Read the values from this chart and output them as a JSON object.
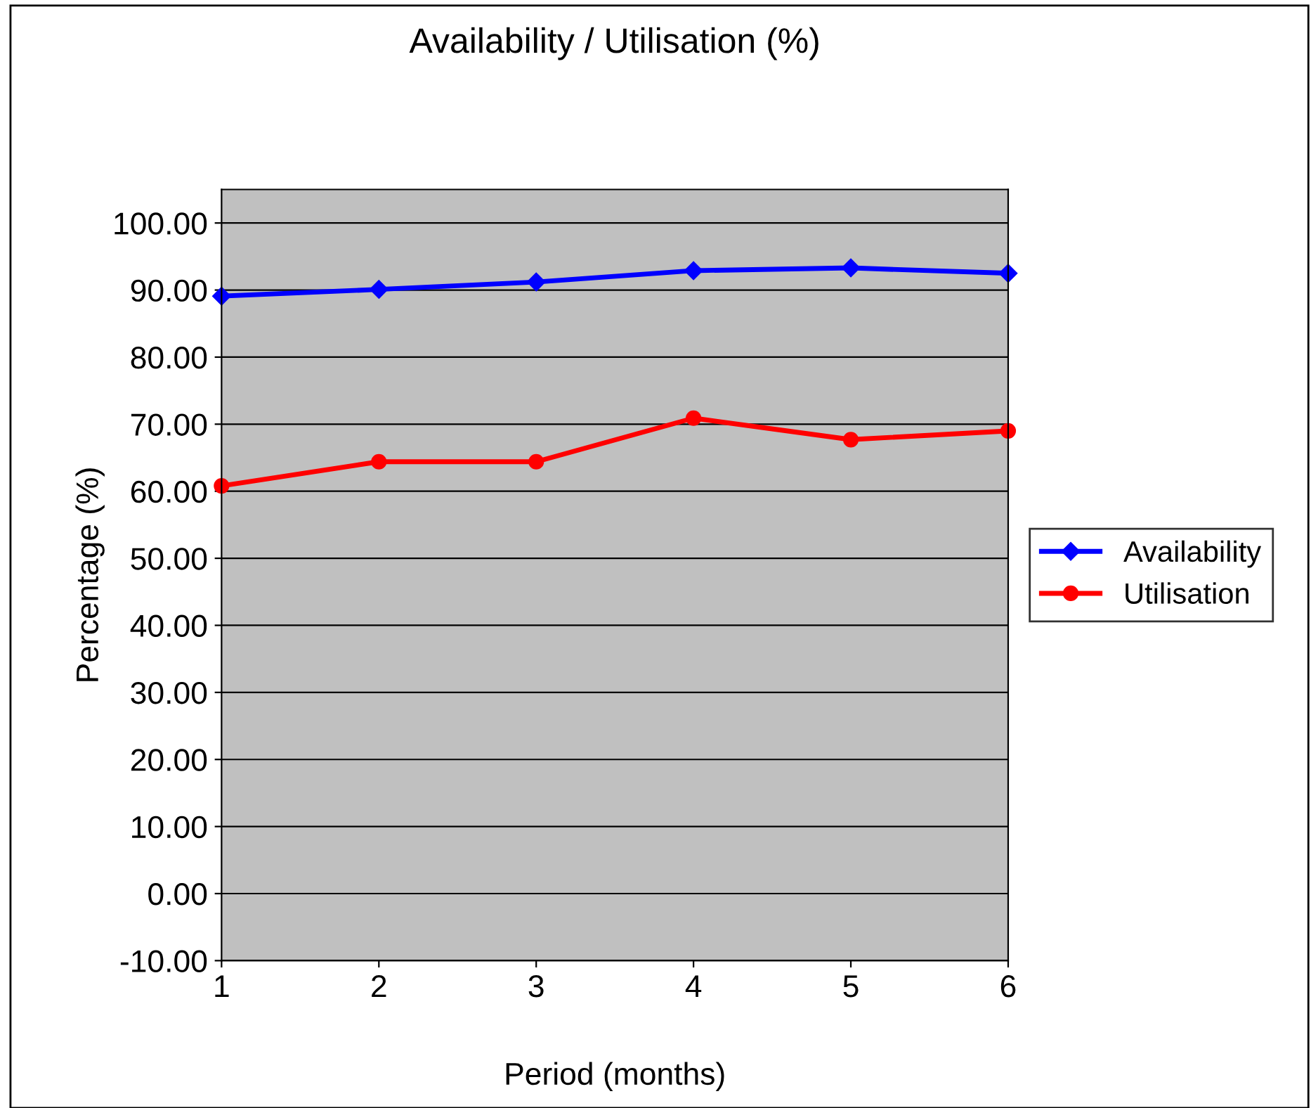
{
  "chart_data": {
    "type": "line",
    "title": "Availability / Utilisation (%)",
    "xlabel": "Period (months)",
    "ylabel": "Percentage (%)",
    "x": [
      1,
      2,
      3,
      4,
      5,
      6
    ],
    "series": [
      {
        "name": "Availability",
        "color": "#0000ff",
        "marker": "diamond",
        "values": [
          89.1,
          90.1,
          91.2,
          92.9,
          93.3,
          92.5
        ]
      },
      {
        "name": "Utilisation",
        "color": "#ff0000",
        "marker": "circle",
        "values": [
          60.8,
          64.4,
          64.4,
          70.9,
          67.7,
          69.0
        ]
      }
    ],
    "xlim": [
      1,
      6
    ],
    "xticks": [
      1,
      2,
      3,
      4,
      5,
      6
    ],
    "ylim": [
      -10,
      105
    ],
    "yticks": [
      {
        "value": -10,
        "label": "-10.00"
      },
      {
        "value": 0,
        "label": "0.00"
      },
      {
        "value": 10,
        "label": "10.00"
      },
      {
        "value": 20,
        "label": "20.00"
      },
      {
        "value": 30,
        "label": "30.00"
      },
      {
        "value": 40,
        "label": "40.00"
      },
      {
        "value": 50,
        "label": "50.00"
      },
      {
        "value": 60,
        "label": "60.00"
      },
      {
        "value": 70,
        "label": "70.00"
      },
      {
        "value": 80,
        "label": "80.00"
      },
      {
        "value": 90,
        "label": "90.00"
      },
      {
        "value": 100,
        "label": "100.00"
      }
    ],
    "grid": "y",
    "legend": "right",
    "line_style": "solid"
  }
}
